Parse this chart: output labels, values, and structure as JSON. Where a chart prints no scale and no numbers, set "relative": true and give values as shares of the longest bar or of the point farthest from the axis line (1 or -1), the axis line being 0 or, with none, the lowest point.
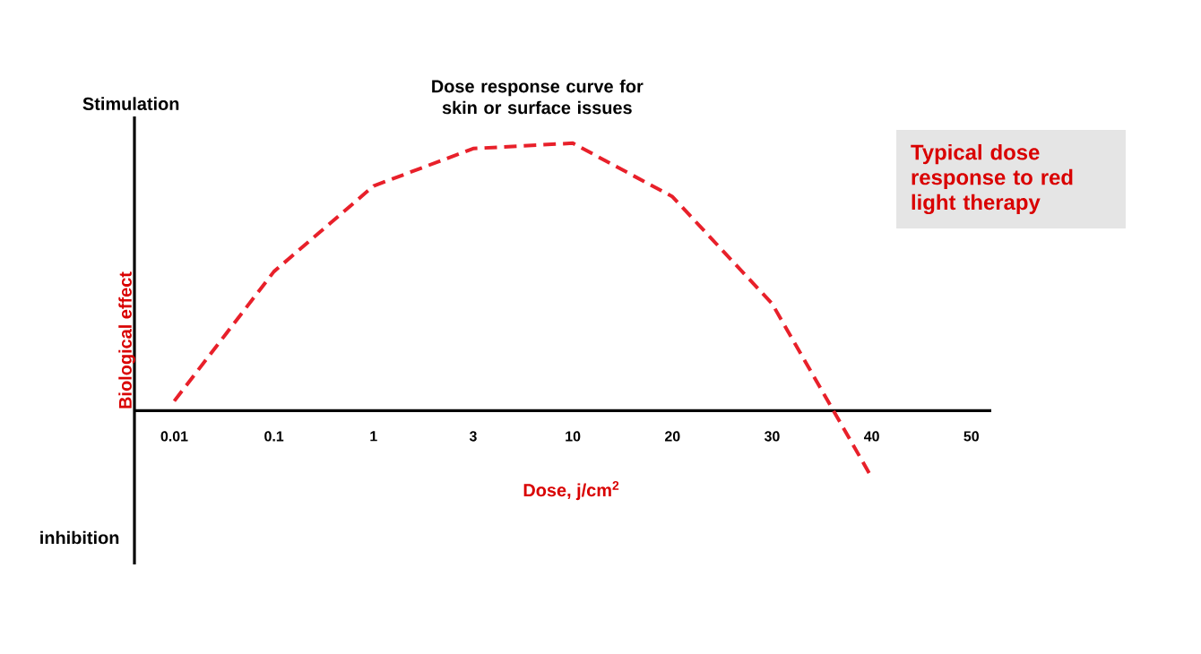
{
  "chart_data": {
    "type": "line",
    "relative": true,
    "title": "Dose response curve for skin or surface issues",
    "xlabel": "Dose, j/cm$^{2}$",
    "ylabel": "Biological effect",
    "annotations": [
      "Stimulation",
      "inhibition",
      "Typical dose response to red light therapy"
    ],
    "categories": [
      "0.01",
      "0.1",
      "1",
      "3",
      "10",
      "20",
      "30",
      "40",
      "50"
    ],
    "values": [
      0.036,
      0.52,
      0.84,
      0.98,
      1.0,
      0.8,
      0.4,
      -0.25,
      null
    ],
    "color": "#e8202a",
    "line_style": "dashed"
  }
}
